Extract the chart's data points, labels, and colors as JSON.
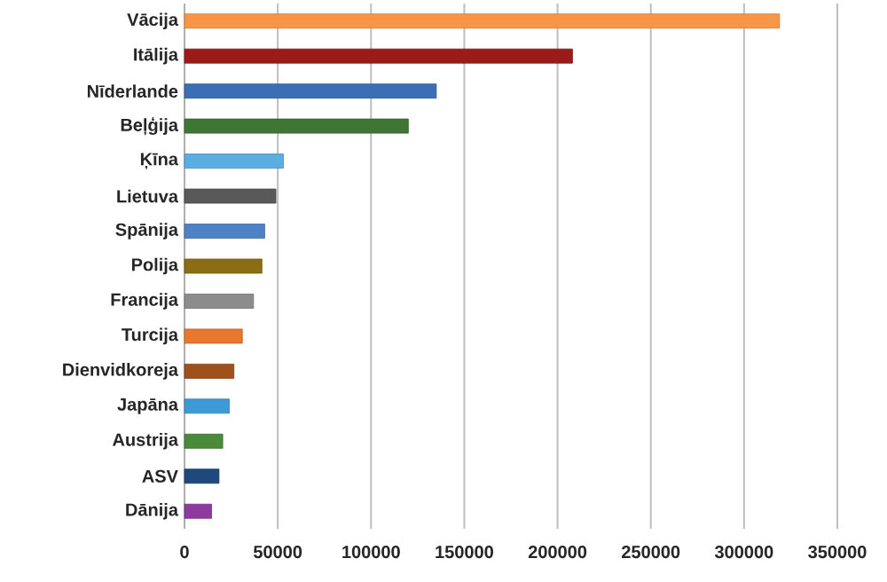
{
  "chart_data": {
    "type": "bar",
    "orientation": "horizontal",
    "categories": [
      "Vācija",
      "Itālija",
      "Nīderlande",
      "Beļģija",
      "Ķīna",
      "Lietuva",
      "Spānija",
      "Polija",
      "Francija",
      "Turcija",
      "Dienvidkoreja",
      "Japāna",
      "Austrija",
      "ASV",
      "Dānija"
    ],
    "values": [
      319000,
      208000,
      135000,
      120000,
      53000,
      49000,
      43000,
      41500,
      37000,
      31000,
      26500,
      24000,
      20500,
      18500,
      14500
    ],
    "colors": [
      "#f79646",
      "#9b1b1b",
      "#3a6fb4",
      "#3f7535",
      "#5aaee0",
      "#595959",
      "#4f81c7",
      "#8a6d14",
      "#8c8c8c",
      "#e8782e",
      "#a0501b",
      "#3d9ad6",
      "#4a8a3a",
      "#1f497d",
      "#8e3a9e"
    ],
    "xlim": [
      0,
      350000
    ],
    "xticks": [
      0,
      50000,
      100000,
      150000,
      200000,
      250000,
      300000,
      350000
    ],
    "grid": "x"
  }
}
